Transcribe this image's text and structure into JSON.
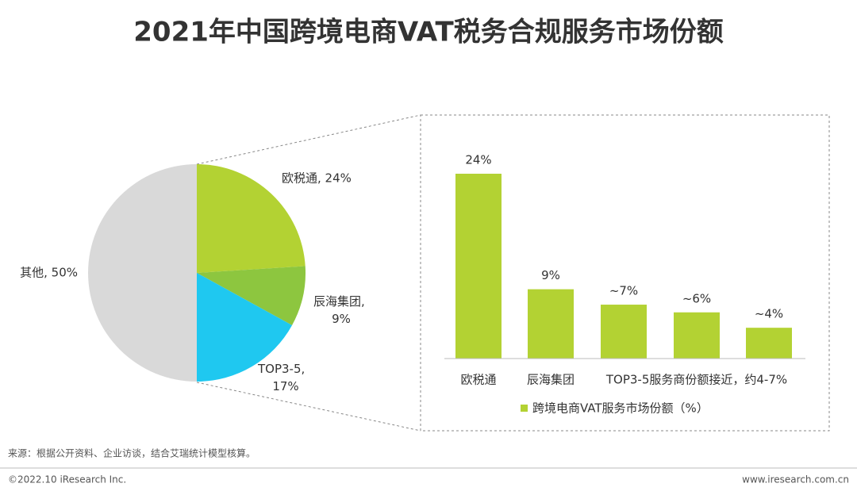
{
  "title": "2021年中国跨境电商VAT税务合规服务市场份额",
  "chart_data": [
    {
      "type": "pie",
      "values": [
        24,
        9,
        17,
        50
      ],
      "value_labels": [
        "欧税通, 24%",
        "辰海集团, 9%",
        "TOP3-5, 17%",
        "其他, 50%"
      ],
      "colors": [
        "#b3d233",
        "#8dc63f",
        "#1fc8f0",
        "#d9d9d9"
      ]
    },
    {
      "type": "bar",
      "categories": [
        "欧税通",
        "辰海集团",
        null,
        null,
        null
      ],
      "group_label": "TOP3-5服务商份额接近，约4-7%",
      "series": [
        {
          "name": "跨境电商VAT服务市场份额（%）",
          "color": "#b3d233",
          "values": [
            24,
            9,
            7,
            6,
            4
          ],
          "value_labels": [
            "24%",
            "9%",
            "~7%",
            "~6%",
            "~4%"
          ]
        }
      ],
      "ylim": [
        0,
        24
      ]
    }
  ],
  "source": "来源：根据公开资料、企业访谈，结合艾瑞统计模型核算。",
  "copyright": "©2022.10 iResearch Inc.",
  "website": "www.iresearch.com.cn"
}
